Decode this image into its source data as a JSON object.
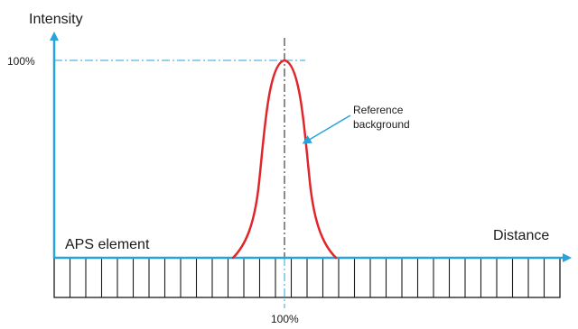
{
  "diagram": {
    "y_axis_label": "Intensity",
    "x_axis_label": "Distance",
    "peak_level_label": "100%",
    "center_position_label": "100%",
    "curve_label_line1": "Reference",
    "curve_label_line2": "background",
    "sensor_label": "APS element",
    "sensor_cell_count": 32,
    "colors": {
      "axis": "#29a3dc",
      "curve": "#e0262b",
      "ink": "#1a1a1a",
      "guide": "#29a3dc"
    }
  }
}
